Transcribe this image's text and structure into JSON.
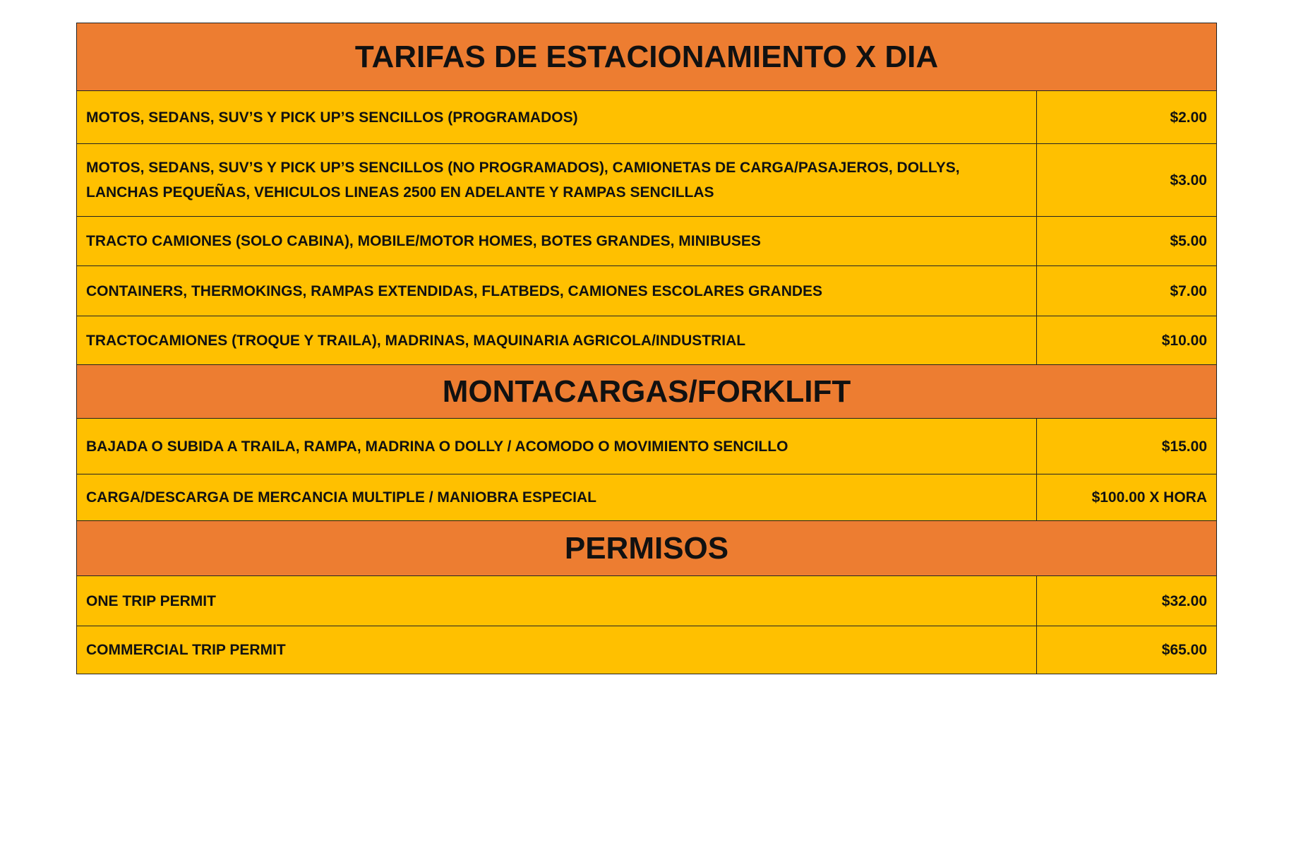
{
  "sections": [
    {
      "title": "TARIFAS DE ESTACIONAMIENTO X DIA",
      "rows": [
        {
          "description": "MOTOS, SEDANS, SUV’S Y PICK UP’S SENCILLOS (PROGRAMADOS)",
          "price": "$2.00"
        },
        {
          "description": "MOTOS, SEDANS, SUV’S Y PICK UP’S SENCILLOS (NO PROGRAMADOS), CAMIONETAS DE CARGA/PASAJEROS, DOLLYS, LANCHAS PEQUEÑAS, VEHICULOS LINEAS 2500 EN ADELANTE Y RAMPAS SENCILLAS",
          "price": "$3.00"
        },
        {
          "description": "TRACTO CAMIONES (SOLO CABINA), MOBILE/MOTOR HOMES, BOTES GRANDES, MINIBUSES",
          "price": "$5.00"
        },
        {
          "description": "CONTAINERS, THERMOKINGS, RAMPAS EXTENDIDAS, FLATBEDS, CAMIONES ESCOLARES GRANDES",
          "price": "$7.00"
        },
        {
          "description": "TRACTOCAMIONES (TROQUE Y TRAILA), MADRINAS, MAQUINARIA AGRICOLA/INDUSTRIAL",
          "price": "$10.00"
        }
      ]
    },
    {
      "title": "MONTACARGAS/FORKLIFT",
      "rows": [
        {
          "description": "BAJADA O SUBIDA A TRAILA, RAMPA, MADRINA O DOLLY / ACOMODO O MOVIMIENTO SENCILLO",
          "price": "$15.00"
        },
        {
          "description": "CARGA/DESCARGA DE MERCANCIA MULTIPLE / MANIOBRA ESPECIAL",
          "price": "$100.00 X HORA"
        }
      ]
    },
    {
      "title": "PERMISOS",
      "rows": [
        {
          "description": "ONE TRIP PERMIT",
          "price": "$32.00"
        },
        {
          "description": "COMMERCIAL TRIP PERMIT",
          "price": "$65.00"
        }
      ]
    }
  ],
  "colors": {
    "header": "#ED7D31",
    "row": "#FFC000"
  }
}
